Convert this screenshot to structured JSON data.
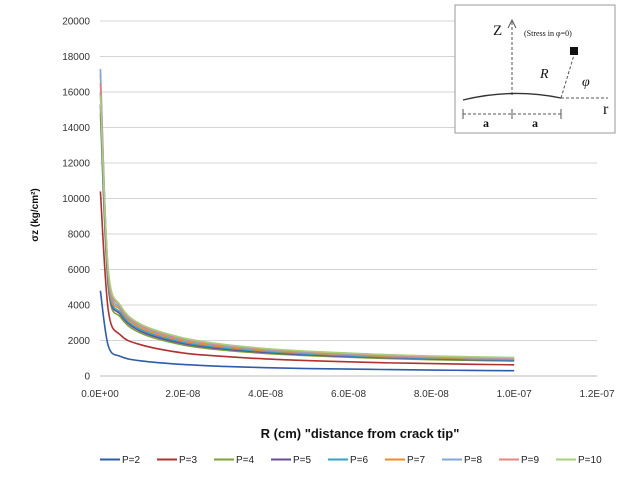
{
  "chart_data": {
    "type": "line",
    "title": "",
    "xlabel": "R (cm) \"distance from crack tip\"",
    "ylabel": "σz (kg/cm²)",
    "xlim": [
      0,
      1.2e-07
    ],
    "ylim": [
      0,
      20000
    ],
    "x_tick_labels": [
      "0.0E+00",
      "2.0E-08",
      "4.0E-08",
      "6.0E-08",
      "8.0E-08",
      "1.0E-07",
      "1.2E-07"
    ],
    "y_tick_labels": [
      "0",
      "2000",
      "4000",
      "6000",
      "8000",
      "10000",
      "12000",
      "14000",
      "16000",
      "18000",
      "20000"
    ],
    "grid": "horizontal",
    "legend_position": "bottom",
    "x": [
      1e-10,
      2e-09,
      5e-09,
      1e-08,
      2e-08,
      3e-08,
      4e-08,
      5e-08,
      6e-08,
      7e-08,
      8e-08,
      9e-08,
      1e-07
    ],
    "series": [
      {
        "name": "P=2",
        "color": "#2e5ca8",
        "values": [
          4800,
          1700,
          1100,
          850,
          650,
          540,
          470,
          420,
          390,
          360,
          335,
          315,
          300
        ]
      },
      {
        "name": "P=3",
        "color": "#b0312f",
        "values": [
          10400,
          3700,
          2300,
          1750,
          1300,
          1100,
          960,
          870,
          800,
          740,
          700,
          660,
          630
        ]
      },
      {
        "name": "P=4",
        "color": "#7ca23a",
        "values": [
          14800,
          5000,
          3300,
          2400,
          1750,
          1450,
          1270,
          1150,
          1060,
          980,
          920,
          880,
          840
        ]
      },
      {
        "name": "P=5",
        "color": "#6a4b9c",
        "values": [
          15300,
          5200,
          3450,
          2500,
          1830,
          1520,
          1330,
          1200,
          1100,
          1030,
          970,
          920,
          880
        ]
      },
      {
        "name": "P=6",
        "color": "#31a3c9",
        "values": [
          16000,
          5400,
          3550,
          2600,
          1900,
          1580,
          1380,
          1240,
          1140,
          1060,
          1000,
          950,
          910
        ]
      },
      {
        "name": "P=7",
        "color": "#f08a24",
        "values": [
          17000,
          5600,
          3700,
          2700,
          1980,
          1640,
          1430,
          1290,
          1190,
          1100,
          1040,
          990,
          950
        ]
      },
      {
        "name": "P=8",
        "color": "#7fa7d8",
        "values": [
          17300,
          5800,
          3800,
          2800,
          2050,
          1700,
          1480,
          1330,
          1230,
          1140,
          1080,
          1020,
          980
        ]
      },
      {
        "name": "P=9",
        "color": "#e8857f",
        "values": [
          16500,
          5900,
          3900,
          2850,
          2100,
          1740,
          1520,
          1370,
          1260,
          1170,
          1100,
          1050,
          1010
        ]
      },
      {
        "name": "P=10",
        "color": "#a9cf7d",
        "values": [
          15800,
          6000,
          3950,
          2900,
          2150,
          1780,
          1550,
          1400,
          1290,
          1200,
          1130,
          1080,
          1040
        ]
      }
    ]
  },
  "inset": {
    "label_z": "Z",
    "note": "(Stress in φ=0)",
    "label_R": "R",
    "label_phi": "φ",
    "label_r": "r",
    "label_a_left": "a",
    "label_a_right": "a"
  }
}
